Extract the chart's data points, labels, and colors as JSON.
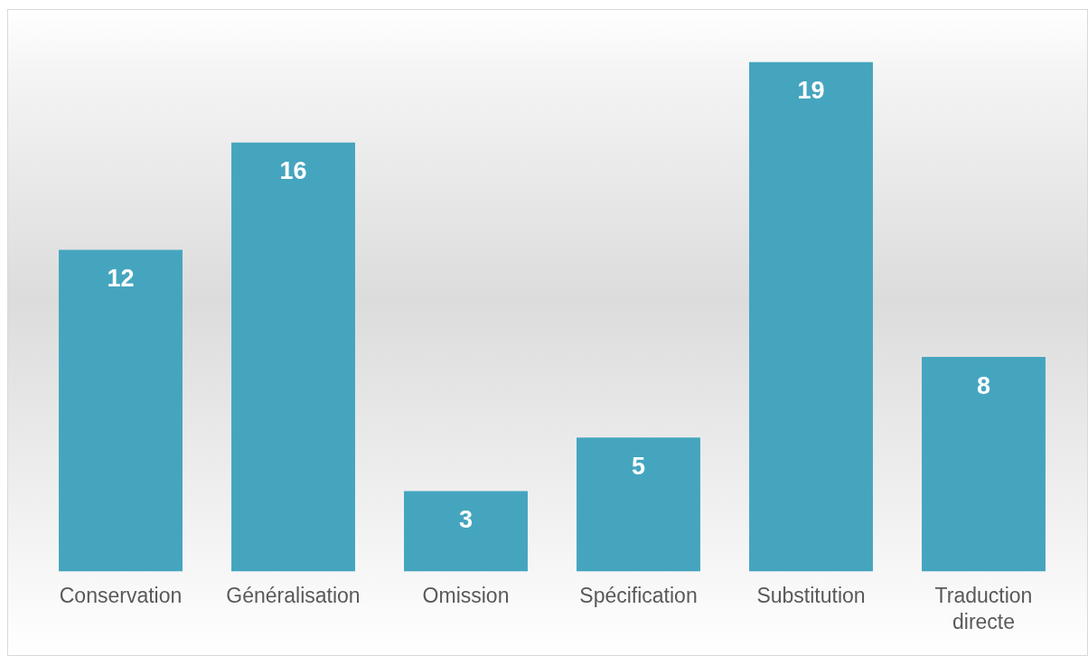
{
  "chart_data": {
    "type": "bar",
    "categories": [
      "Conservation",
      "Généralisation",
      "Omission",
      "Spécification",
      "Substitution",
      "Traduction directe"
    ],
    "values": [
      12,
      16,
      3,
      5,
      19,
      8
    ],
    "color": "#45a5bf",
    "data_labels": true,
    "grid": false,
    "legend": false
  }
}
